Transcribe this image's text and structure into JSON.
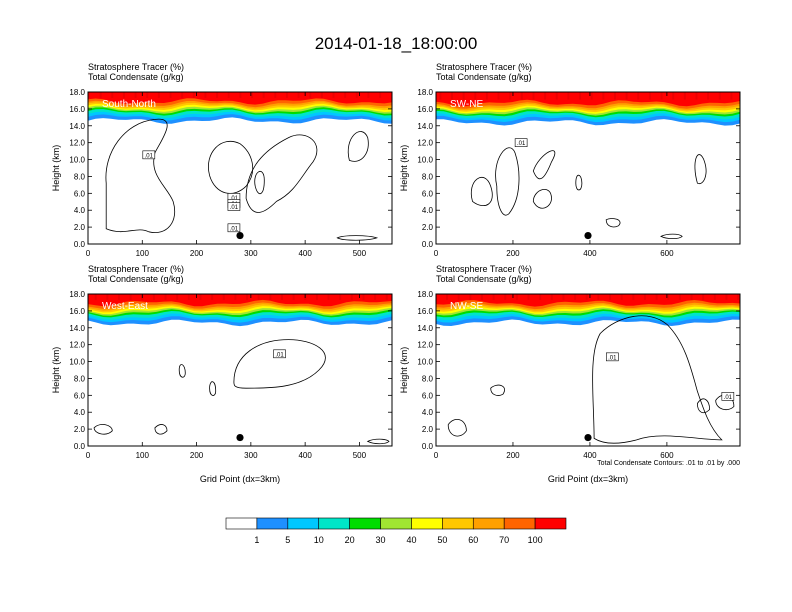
{
  "title": "2014-01-18_18:00:00",
  "panel_header": {
    "line1": "Stratosphere Tracer   (%)",
    "line2": "Total Condensate   (g/kg)"
  },
  "contour_note": "Total Condensate Contours: .01 to .01 by .000",
  "colors": {
    "levels": [
      "#ffffff",
      "#1e90ff",
      "#00c8ff",
      "#00e5c8",
      "#00dc00",
      "#a0e632",
      "#ffff00",
      "#ffc800",
      "#ffa000",
      "#ff6400",
      "#ff0000"
    ],
    "marker": "#000000"
  },
  "chart_data": [
    {
      "type": "heatmap",
      "panel_label": "South-North",
      "ylabel": "Height (km)",
      "xlabel": "",
      "xlim": [
        0,
        560
      ],
      "ylim": [
        0,
        18
      ],
      "xticks": [
        "0",
        "100",
        "200",
        "300",
        "400",
        "500"
      ],
      "yticks": [
        "0.0",
        "2.0",
        "4.0",
        "6.0",
        "8.0",
        "10.0",
        "12.0",
        "14.0",
        "16.0",
        "18.0"
      ],
      "tracer_layer_base_km": 15.0,
      "contour_labels": [
        ".01",
        ".01",
        ".01",
        ".01",
        ".01"
      ],
      "marker": {
        "x": 280,
        "y": 1.0
      }
    },
    {
      "type": "heatmap",
      "panel_label": "SW-NE",
      "ylabel": "Height (km)",
      "xlabel": "",
      "xlim": [
        0,
        790
      ],
      "ylim": [
        0,
        18
      ],
      "xticks": [
        "0",
        "200",
        "400",
        "600"
      ],
      "yticks": [
        "0.0",
        "2.0",
        "4.0",
        "6.0",
        "8.0",
        "10.0",
        "12.0",
        "14.0",
        "16.0",
        "18.0"
      ],
      "tracer_layer_base_km": 14.8,
      "contour_labels": [
        ".01"
      ],
      "marker": {
        "x": 395,
        "y": 1.0
      }
    },
    {
      "type": "heatmap",
      "panel_label": "West-East",
      "ylabel": "Height (km)",
      "xlabel": "Grid Point (dx=3km)",
      "xlim": [
        0,
        560
      ],
      "ylim": [
        0,
        18
      ],
      "xticks": [
        "0",
        "100",
        "200",
        "300",
        "400",
        "500"
      ],
      "yticks": [
        "0.0",
        "2.0",
        "4.0",
        "6.0",
        "8.0",
        "10.0",
        "12.0",
        "14.0",
        "16.0",
        "18.0"
      ],
      "tracer_layer_base_km": 15.0,
      "contour_labels": [
        ".01"
      ],
      "marker": {
        "x": 280,
        "y": 1.0
      }
    },
    {
      "type": "heatmap",
      "panel_label": "NW-SE",
      "ylabel": "Height (km)",
      "xlabel": "Grid Point (dx=3km)",
      "xlim": [
        0,
        790
      ],
      "ylim": [
        0,
        18
      ],
      "xticks": [
        "0",
        "200",
        "400",
        "600"
      ],
      "yticks": [
        "0.0",
        "2.0",
        "4.0",
        "6.0",
        "8.0",
        "10.0",
        "12.0",
        "14.0",
        "16.0",
        "18.0"
      ],
      "tracer_layer_base_km": 15.0,
      "contour_labels": [
        ".01",
        ".01"
      ],
      "marker": {
        "x": 395,
        "y": 1.0
      }
    }
  ],
  "colorbar": {
    "labels": [
      "1",
      "5",
      "10",
      "20",
      "30",
      "40",
      "50",
      "60",
      "70",
      "100"
    ]
  }
}
